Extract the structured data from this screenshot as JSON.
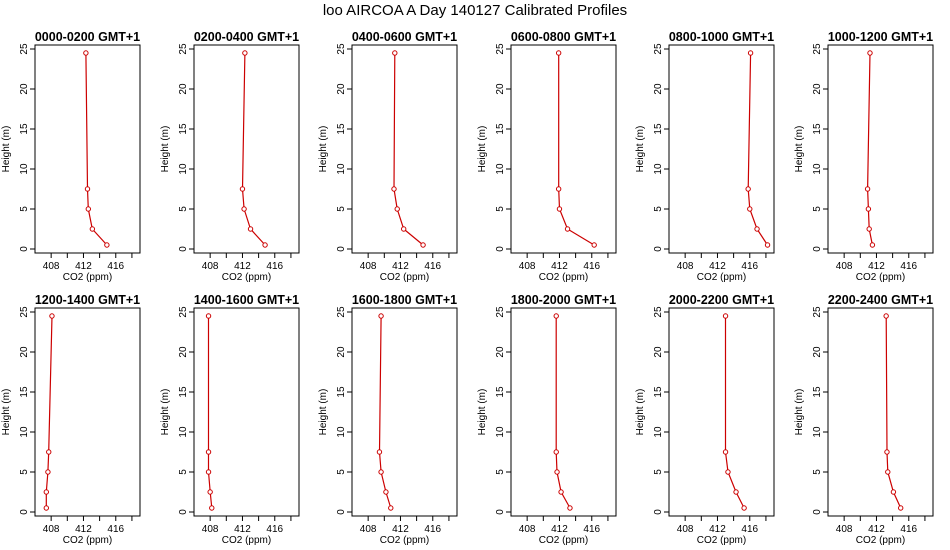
{
  "title": "loo AIRCOA A  Day 140127  Calibrated Profiles",
  "chart_data": {
    "type": "line",
    "xlabel": "CO2 (ppm)",
    "ylabel": "Height (m)",
    "xlim": [
      406,
      419
    ],
    "ylim": [
      -0.5,
      25.5
    ],
    "xticks": [
      408,
      412,
      416
    ],
    "yticks": [
      0,
      5,
      10,
      15,
      20,
      25
    ],
    "line_color": "#cc0000",
    "heights": [
      0.5,
      2.5,
      5,
      7.5,
      24.5
    ],
    "panels": [
      {
        "title": "0000-0200 GMT+1",
        "x": [
          414.9,
          413.1,
          412.6,
          412.5,
          412.3
        ]
      },
      {
        "title": "0200-0400 GMT+1",
        "x": [
          414.8,
          413.0,
          412.2,
          412.0,
          412.3
        ]
      },
      {
        "title": "0400-0600 GMT+1",
        "x": [
          414.8,
          412.4,
          411.6,
          411.2,
          411.3
        ]
      },
      {
        "title": "0600-0800 GMT+1",
        "x": [
          416.3,
          413.0,
          412.0,
          411.9,
          411.9
        ]
      },
      {
        "title": "0800-1000 GMT+1",
        "x": [
          418.2,
          416.9,
          416.0,
          415.8,
          416.1
        ]
      },
      {
        "title": "1000-1200 GMT+1",
        "x": [
          411.5,
          411.1,
          411.0,
          410.9,
          411.2
        ]
      },
      {
        "title": "1200-1400 GMT+1",
        "x": [
          407.4,
          407.4,
          407.6,
          407.7,
          408.1
        ]
      },
      {
        "title": "1400-1600 GMT+1",
        "x": [
          408.2,
          408.0,
          407.8,
          407.8,
          407.8
        ]
      },
      {
        "title": "1600-1800 GMT+1",
        "x": [
          410.8,
          410.2,
          409.6,
          409.4,
          409.6
        ]
      },
      {
        "title": "1800-2000 GMT+1",
        "x": [
          413.3,
          412.2,
          411.7,
          411.6,
          411.6
        ]
      },
      {
        "title": "2000-2200 GMT+1",
        "x": [
          415.3,
          414.3,
          413.3,
          413.0,
          413.0
        ]
      },
      {
        "title": "2200-2400 GMT+1",
        "x": [
          415.0,
          414.1,
          413.4,
          413.3,
          413.2
        ]
      }
    ]
  }
}
